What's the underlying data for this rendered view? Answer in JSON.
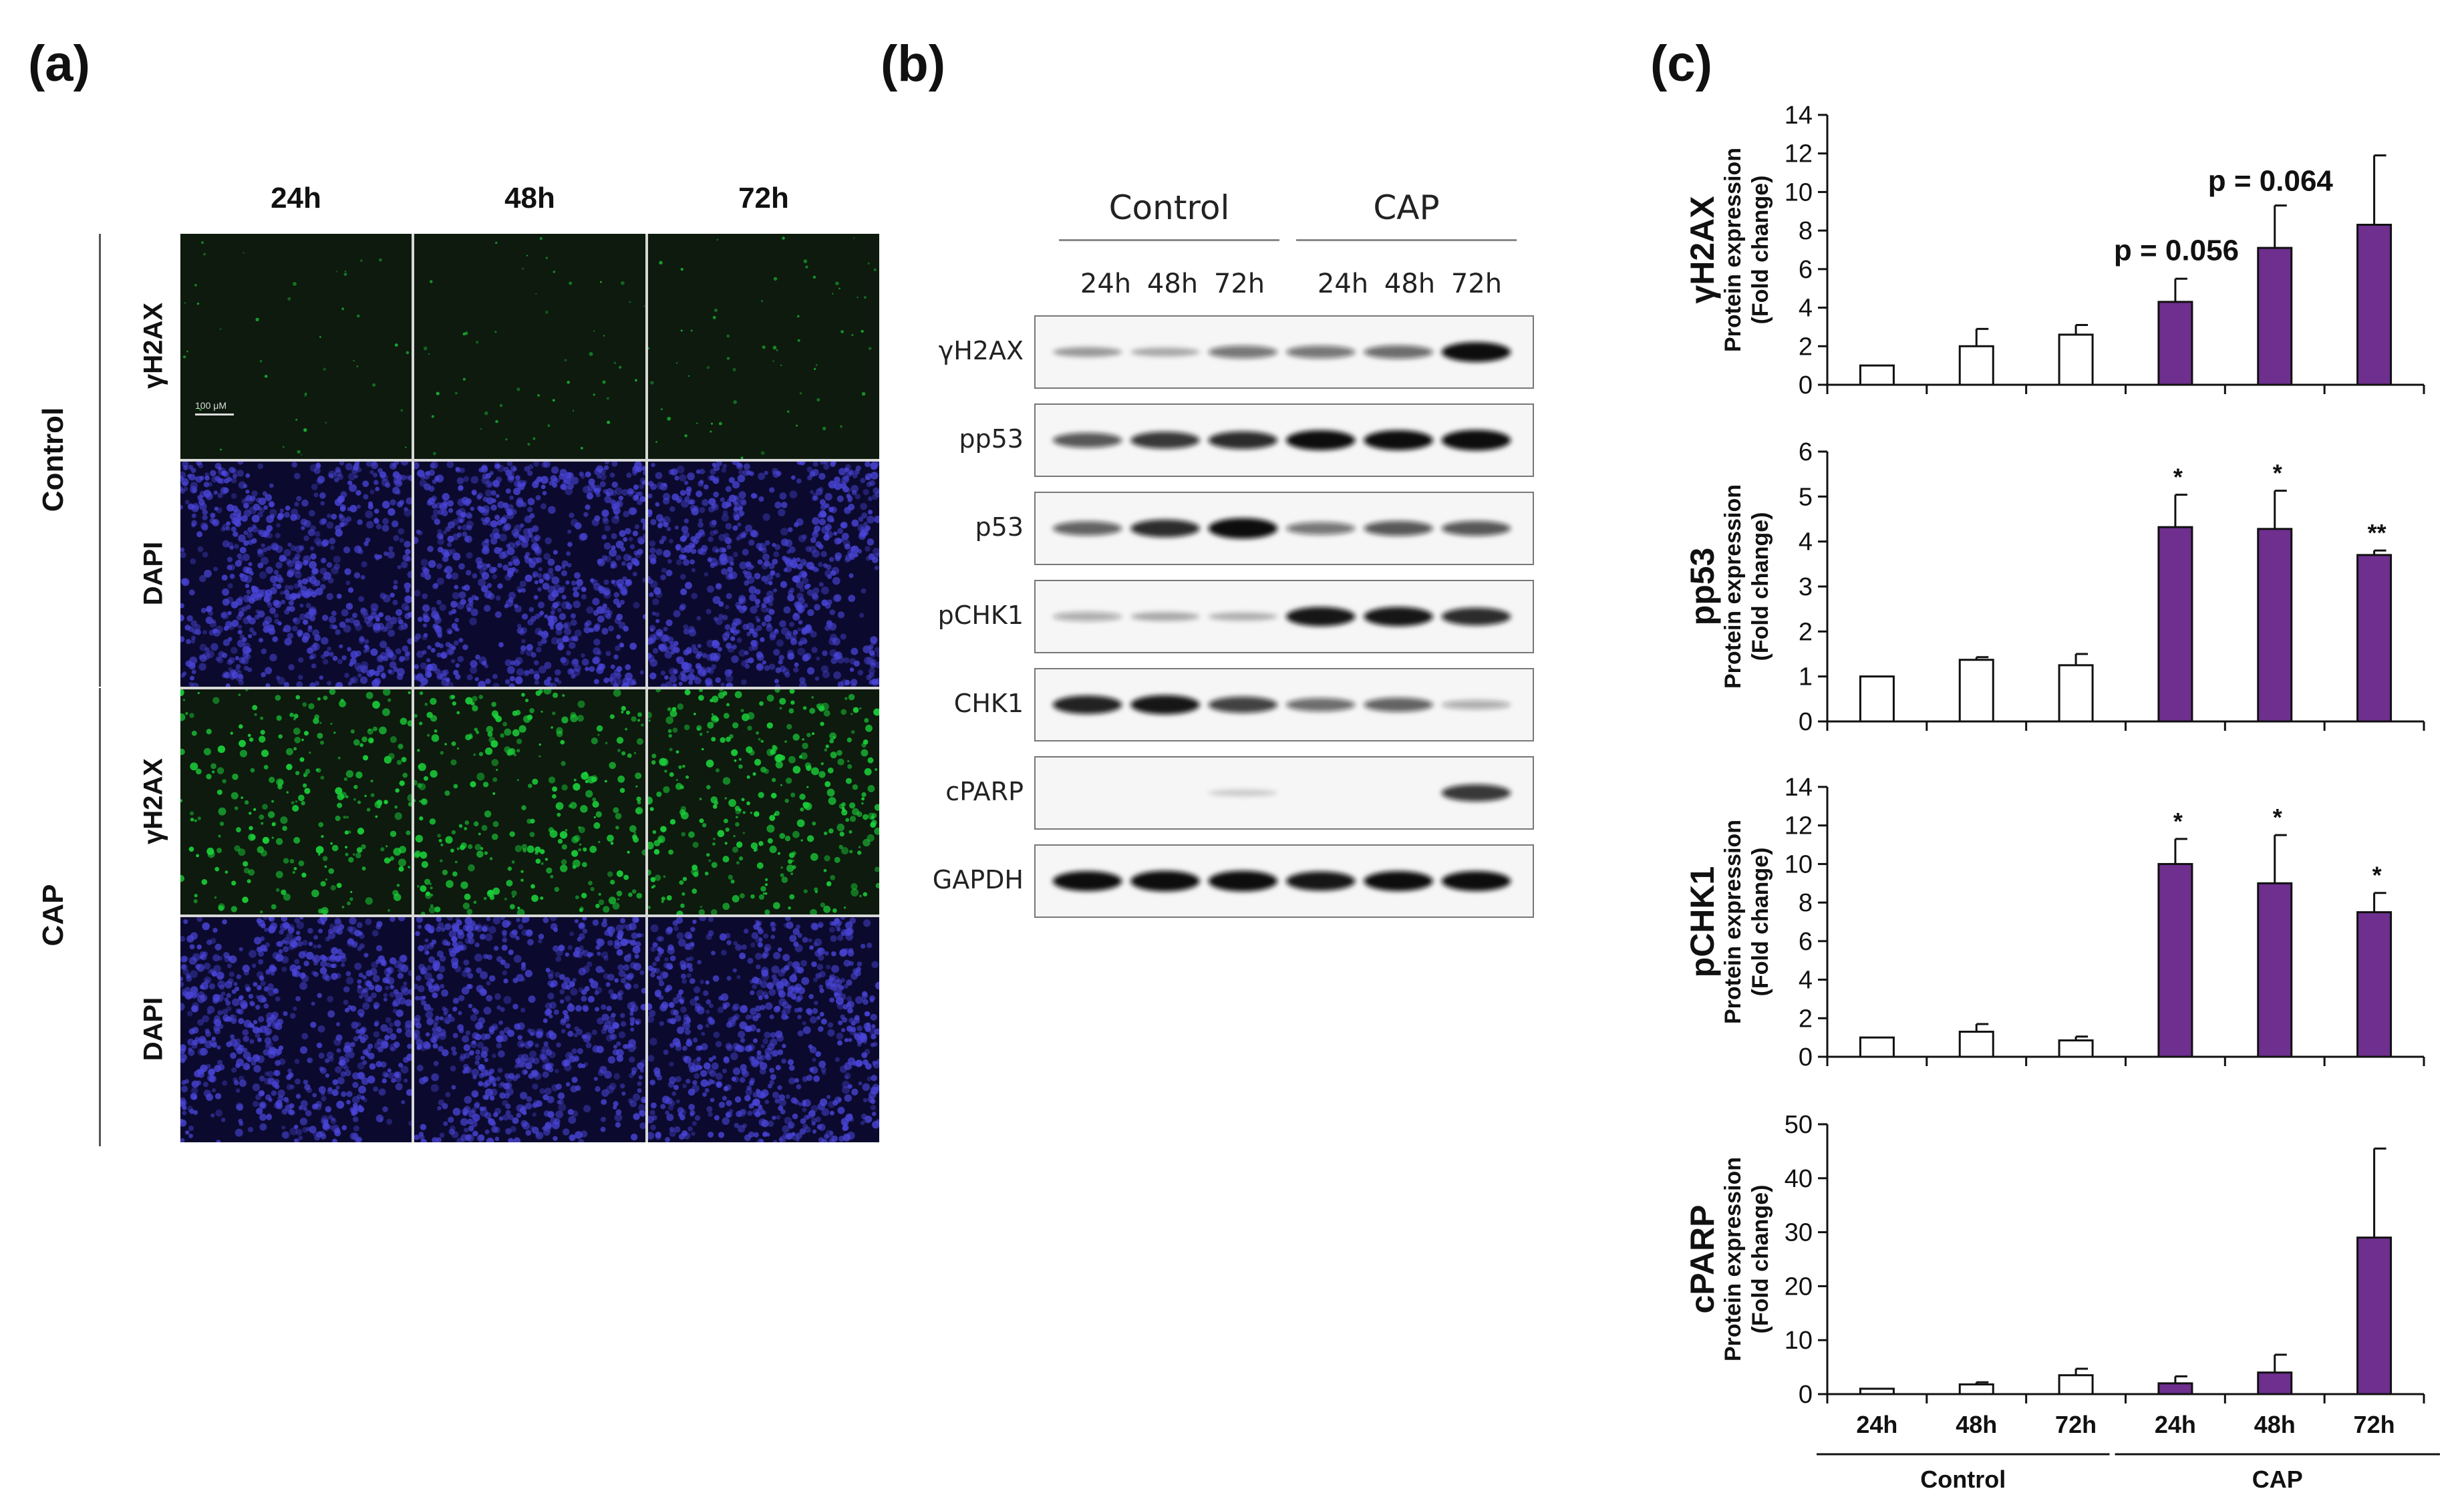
{
  "panel_labels": {
    "a": "(a)",
    "b": "(b)",
    "c": "(c)"
  },
  "panel_a": {
    "columns": [
      "24h",
      "48h",
      "72h"
    ],
    "groups": [
      {
        "name": "Control",
        "rows": [
          "γH2AX",
          "DAPI"
        ]
      },
      {
        "name": "CAP",
        "rows": [
          "γH2AX",
          "DAPI"
        ]
      }
    ],
    "scale_bar": "100 μM",
    "colors": {
      "gamma": "#1bd13a",
      "dapi": "#4a45d8"
    }
  },
  "panel_b": {
    "groups": [
      "Control",
      "CAP"
    ],
    "timepoints": [
      "24h",
      "48h",
      "72h",
      "24h",
      "48h",
      "72h"
    ],
    "rows": [
      {
        "name": "γH2AX",
        "intensities": [
          0.25,
          0.18,
          0.45,
          0.45,
          0.5,
          0.95
        ]
      },
      {
        "name": "pp53",
        "intensities": [
          0.6,
          0.75,
          0.8,
          0.95,
          0.95,
          1.0
        ]
      },
      {
        "name": "p53",
        "intensities": [
          0.55,
          0.8,
          1.0,
          0.45,
          0.6,
          0.6
        ]
      },
      {
        "name": "pCHK1",
        "intensities": [
          0.2,
          0.18,
          0.15,
          0.9,
          0.9,
          0.8
        ]
      },
      {
        "name": "CHK1",
        "intensities": [
          0.85,
          0.9,
          0.7,
          0.5,
          0.55,
          0.2
        ]
      },
      {
        "name": "cPARP",
        "intensities": [
          0.0,
          0.0,
          0.03,
          0.0,
          0.0,
          0.75
        ]
      },
      {
        "name": "GAPDH",
        "intensities": [
          0.95,
          1.0,
          1.0,
          0.9,
          0.95,
          0.95
        ]
      }
    ]
  },
  "chart_data": [
    {
      "type": "bar",
      "protein": "γH2AX",
      "ylabel_line1": "Protein expression",
      "ylabel_line2": "(Fold change)",
      "ylim": [
        0,
        14
      ],
      "yticks": [
        0,
        2,
        4,
        6,
        8,
        10,
        12,
        14
      ],
      "categories": [
        "24h",
        "48h",
        "72h",
        "24h",
        "48h",
        "72h"
      ],
      "groups": [
        "Control",
        "Control",
        "Control",
        "CAP",
        "CAP",
        "CAP"
      ],
      "values": [
        1.0,
        2.0,
        2.6,
        4.3,
        7.1,
        8.3
      ],
      "errors": [
        0.0,
        0.9,
        0.5,
        1.2,
        2.2,
        3.6
      ],
      "annotations": [
        "",
        "",
        "",
        "p = 0.056",
        "p = 0.064",
        ""
      ]
    },
    {
      "type": "bar",
      "protein": "pp53",
      "ylabel_line1": "Protein expression",
      "ylabel_line2": "(Fold change)",
      "ylim": [
        0,
        6
      ],
      "yticks": [
        0,
        1,
        2,
        3,
        4,
        5,
        6
      ],
      "categories": [
        "24h",
        "48h",
        "72h",
        "24h",
        "48h",
        "72h"
      ],
      "groups": [
        "Control",
        "Control",
        "Control",
        "CAP",
        "CAP",
        "CAP"
      ],
      "values": [
        1.0,
        1.37,
        1.25,
        4.32,
        4.28,
        3.7
      ],
      "errors": [
        0.0,
        0.06,
        0.25,
        0.72,
        0.85,
        0.1
      ],
      "annotations": [
        "",
        "",
        "",
        "*",
        "*",
        "**"
      ]
    },
    {
      "type": "bar",
      "protein": "pCHK1",
      "ylabel_line1": "Protein expression",
      "ylabel_line2": "(Fold change)",
      "ylim": [
        0,
        14
      ],
      "yticks": [
        0,
        2,
        4,
        6,
        8,
        10,
        12,
        14
      ],
      "categories": [
        "24h",
        "48h",
        "72h",
        "24h",
        "48h",
        "72h"
      ],
      "groups": [
        "Control",
        "Control",
        "Control",
        "CAP",
        "CAP",
        "CAP"
      ],
      "values": [
        1.0,
        1.3,
        0.85,
        10.0,
        9.0,
        7.5
      ],
      "errors": [
        0.0,
        0.4,
        0.2,
        1.3,
        2.5,
        1.0
      ],
      "annotations": [
        "",
        "",
        "",
        "*",
        "*",
        "*"
      ]
    },
    {
      "type": "bar",
      "protein": "cPARP",
      "ylabel_line1": "Protein expression",
      "ylabel_line2": "(Fold change)",
      "ylim": [
        0,
        50
      ],
      "yticks": [
        0,
        10,
        20,
        30,
        40,
        50
      ],
      "categories": [
        "24h",
        "48h",
        "72h",
        "24h",
        "48h",
        "72h"
      ],
      "groups": [
        "Control",
        "Control",
        "Control",
        "CAP",
        "CAP",
        "CAP"
      ],
      "values": [
        1.0,
        1.8,
        3.5,
        2.0,
        4.0,
        29.0
      ],
      "errors": [
        0.0,
        0.4,
        1.2,
        1.3,
        3.3,
        16.5
      ],
      "annotations": [
        "",
        "",
        "",
        "",
        "",
        ""
      ],
      "group_labels": [
        "Control",
        "CAP"
      ]
    }
  ],
  "colors": {
    "control_fill": "#ffffff",
    "cap_fill": "#6e2f8f",
    "bar_stroke": "#111111"
  }
}
